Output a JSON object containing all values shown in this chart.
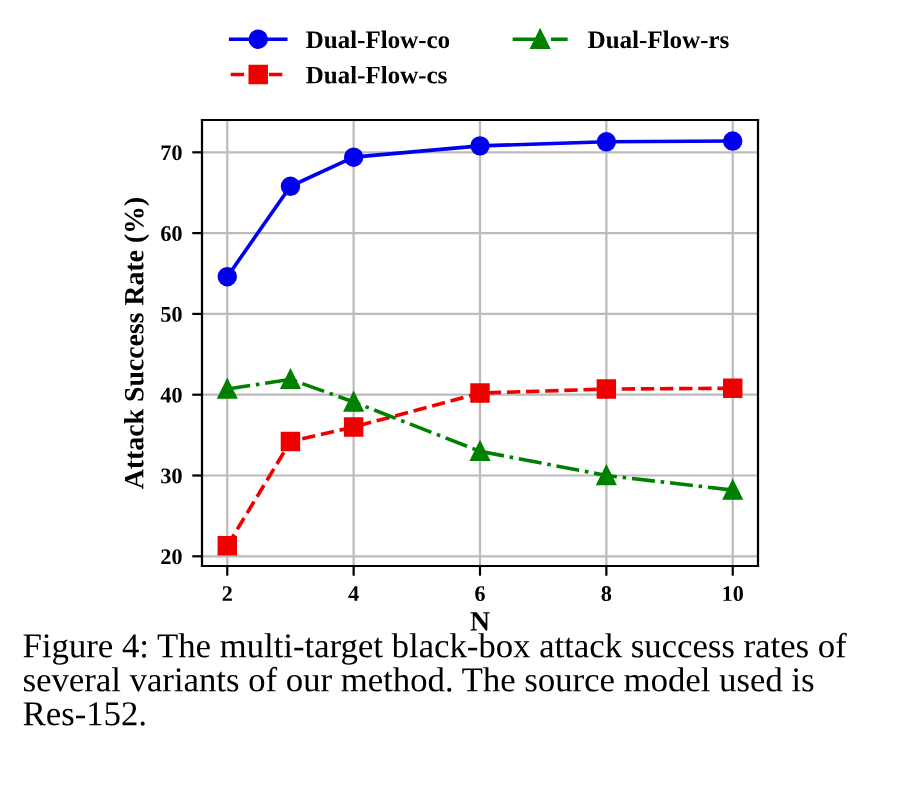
{
  "chart_data": {
    "type": "line",
    "xlabel": "N",
    "ylabel": "Attack Success Rate (%)",
    "x": [
      2,
      3,
      4,
      6,
      8,
      10
    ],
    "series": [
      {
        "name": "Dual-Flow-co",
        "color": "#0000ee",
        "marker": "circle",
        "line_style": "solid",
        "values": [
          54.6,
          65.8,
          69.4,
          70.8,
          71.3,
          71.4
        ]
      },
      {
        "name": "Dual-Flow-cs",
        "color": "#ee0000",
        "marker": "square",
        "line_style": "dashed",
        "values": [
          21.3,
          34.2,
          36.0,
          40.2,
          40.7,
          40.8
        ]
      },
      {
        "name": "Dual-Flow-rs",
        "color": "#008000",
        "marker": "triangle",
        "line_style": "dashdot",
        "values": [
          40.7,
          41.9,
          39.1,
          33.0,
          30.0,
          28.2
        ]
      }
    ],
    "xlim": [
      1.6,
      10.4
    ],
    "ylim": [
      18.8,
      74
    ],
    "xticks": [
      2,
      4,
      6,
      8,
      10
    ],
    "yticks": [
      20,
      30,
      40,
      50,
      60,
      70
    ],
    "grid": true,
    "legend": "top",
    "annotations": [
      "Figure 4: The multi-target black-box attack success rates of several variants of our method. The source model used is Res-152."
    ]
  }
}
